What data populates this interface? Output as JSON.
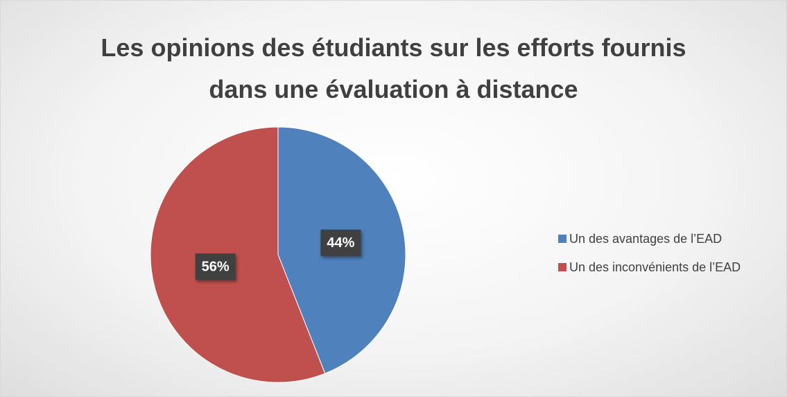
{
  "chart_data": {
    "type": "pie",
    "title": "Les opinions des étudiants sur les efforts fournis dans une évaluation à distance",
    "categories": [
      "Un des avantages de l’EAD",
      "Un des inconvénients de l’EAD"
    ],
    "values": [
      44,
      56
    ],
    "value_labels": [
      "44%",
      "56%"
    ],
    "colors": [
      "#4f81bd",
      "#c0504d"
    ],
    "legend": "right"
  }
}
